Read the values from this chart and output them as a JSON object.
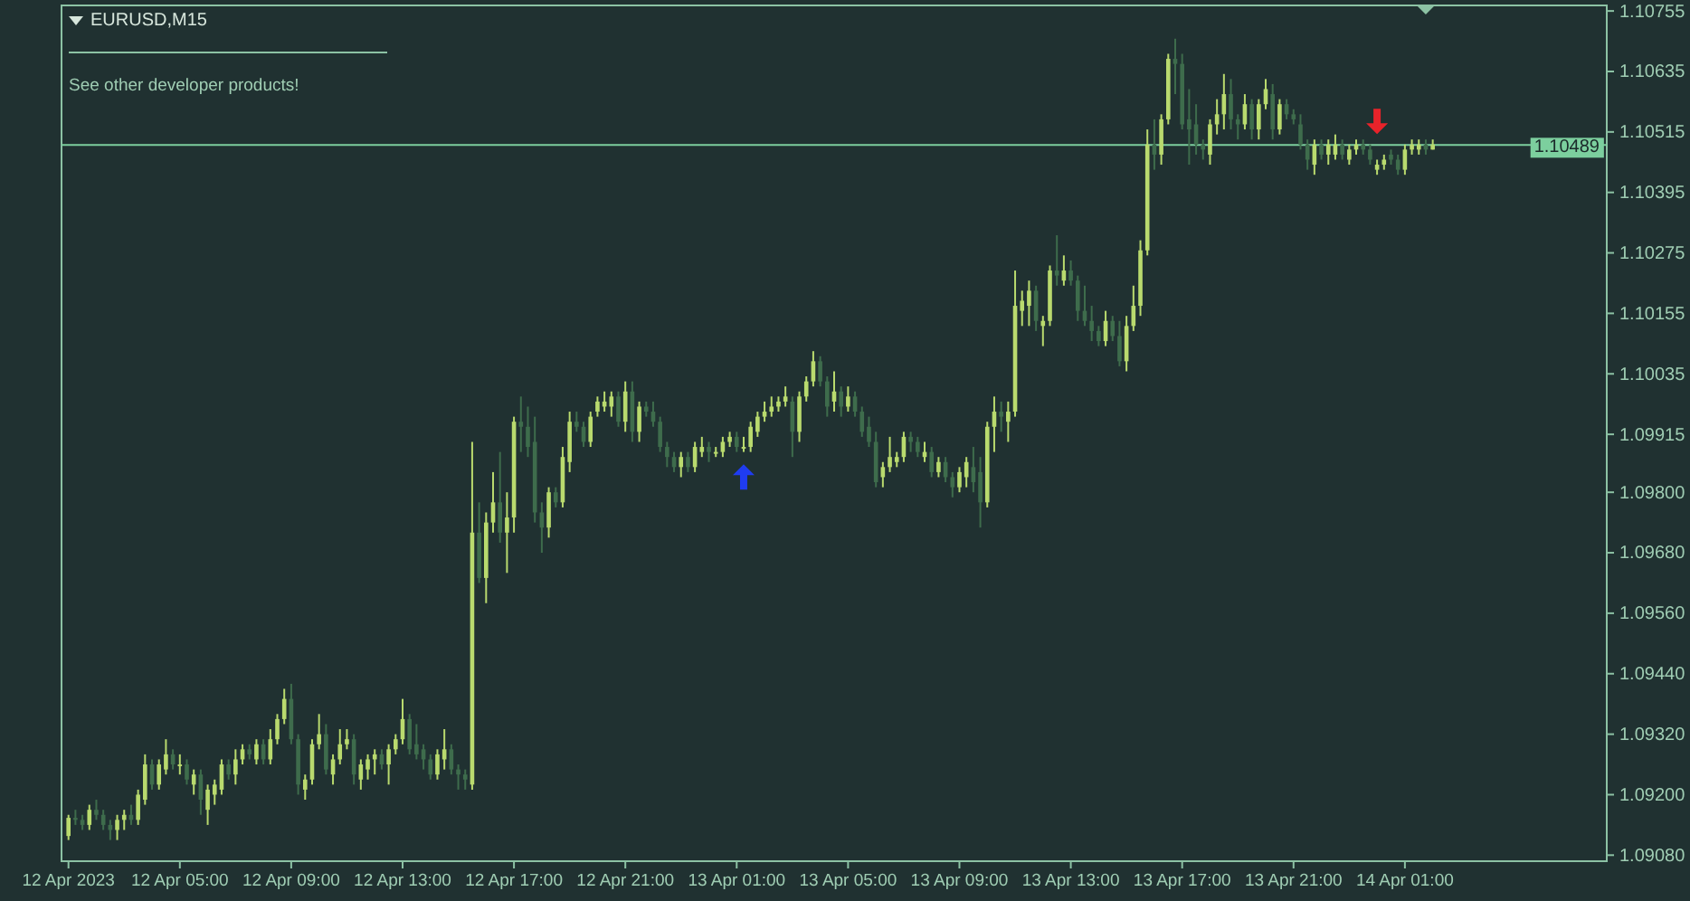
{
  "chart_data": {
    "type": "candlestick",
    "title": "EURUSD,M15",
    "annotations": [
      "See other developer products!"
    ],
    "x": [
      "2023-04-12T01:00",
      "2023-04-12T01:15",
      "2023-04-12T01:30",
      "2023-04-12T01:45",
      "2023-04-12T02:00",
      "2023-04-12T02:15",
      "2023-04-12T02:30",
      "2023-04-12T02:45",
      "2023-04-12T03:00",
      "2023-04-12T03:15",
      "2023-04-12T03:30",
      "2023-04-12T03:45",
      "2023-04-12T04:00",
      "2023-04-12T04:15",
      "2023-04-12T04:30",
      "2023-04-12T04:45",
      "2023-04-12T05:00",
      "2023-04-12T05:15",
      "2023-04-12T05:30",
      "2023-04-12T05:45",
      "2023-04-12T06:00",
      "2023-04-12T06:15",
      "2023-04-12T06:30",
      "2023-04-12T06:45",
      "2023-04-12T07:00",
      "2023-04-12T07:15",
      "2023-04-12T07:30",
      "2023-04-12T07:45",
      "2023-04-12T08:00",
      "2023-04-12T08:15",
      "2023-04-12T08:30",
      "2023-04-12T08:45",
      "2023-04-12T09:00",
      "2023-04-12T09:15",
      "2023-04-12T09:30",
      "2023-04-12T09:45",
      "2023-04-12T10:00",
      "2023-04-12T10:15",
      "2023-04-12T10:30",
      "2023-04-12T10:45",
      "2023-04-12T11:00",
      "2023-04-12T11:15",
      "2023-04-12T11:30",
      "2023-04-12T11:45",
      "2023-04-12T12:00",
      "2023-04-12T12:15",
      "2023-04-12T12:30",
      "2023-04-12T12:45",
      "2023-04-12T13:00",
      "2023-04-12T13:15",
      "2023-04-12T13:30",
      "2023-04-12T13:45",
      "2023-04-12T14:00",
      "2023-04-12T14:15",
      "2023-04-12T14:30",
      "2023-04-12T14:45",
      "2023-04-12T15:00",
      "2023-04-12T15:15",
      "2023-04-12T15:30",
      "2023-04-12T15:45",
      "2023-04-12T16:00",
      "2023-04-12T16:15",
      "2023-04-12T16:30",
      "2023-04-12T16:45",
      "2023-04-12T17:00",
      "2023-04-12T17:15",
      "2023-04-12T17:30",
      "2023-04-12T17:45",
      "2023-04-12T18:00",
      "2023-04-12T18:15",
      "2023-04-12T18:30",
      "2023-04-12T18:45",
      "2023-04-12T19:00",
      "2023-04-12T19:15",
      "2023-04-12T19:30",
      "2023-04-12T19:45",
      "2023-04-12T20:00",
      "2023-04-12T20:15",
      "2023-04-12T20:30",
      "2023-04-12T20:45",
      "2023-04-12T21:00",
      "2023-04-12T21:15",
      "2023-04-12T21:30",
      "2023-04-12T21:45",
      "2023-04-12T22:00",
      "2023-04-12T22:15",
      "2023-04-12T22:30",
      "2023-04-12T22:45",
      "2023-04-12T23:00",
      "2023-04-12T23:15",
      "2023-04-12T23:30",
      "2023-04-12T23:45",
      "2023-04-13T00:00",
      "2023-04-13T00:15",
      "2023-04-13T00:30",
      "2023-04-13T00:45",
      "2023-04-13T01:00",
      "2023-04-13T01:15",
      "2023-04-13T01:30",
      "2023-04-13T01:45",
      "2023-04-13T02:00",
      "2023-04-13T02:15",
      "2023-04-13T02:30",
      "2023-04-13T02:45",
      "2023-04-13T03:00",
      "2023-04-13T03:15",
      "2023-04-13T03:30",
      "2023-04-13T03:45",
      "2023-04-13T04:00",
      "2023-04-13T04:15",
      "2023-04-13T04:30",
      "2023-04-13T04:45",
      "2023-04-13T05:00",
      "2023-04-13T05:15",
      "2023-04-13T05:30",
      "2023-04-13T05:45",
      "2023-04-13T06:00",
      "2023-04-13T06:15",
      "2023-04-13T06:30",
      "2023-04-13T06:45",
      "2023-04-13T07:00",
      "2023-04-13T07:15",
      "2023-04-13T07:30",
      "2023-04-13T07:45",
      "2023-04-13T08:00",
      "2023-04-13T08:15",
      "2023-04-13T08:30",
      "2023-04-13T08:45",
      "2023-04-13T09:00",
      "2023-04-13T09:15",
      "2023-04-13T09:30",
      "2023-04-13T09:45",
      "2023-04-13T10:00",
      "2023-04-13T10:15",
      "2023-04-13T10:30",
      "2023-04-13T10:45",
      "2023-04-13T11:00",
      "2023-04-13T11:15",
      "2023-04-13T11:30",
      "2023-04-13T11:45",
      "2023-04-13T12:00",
      "2023-04-13T12:15",
      "2023-04-13T12:30",
      "2023-04-13T12:45",
      "2023-04-13T13:00",
      "2023-04-13T13:15",
      "2023-04-13T13:30",
      "2023-04-13T13:45",
      "2023-04-13T14:00",
      "2023-04-13T14:15",
      "2023-04-13T14:30",
      "2023-04-13T14:45",
      "2023-04-13T15:00",
      "2023-04-13T15:15",
      "2023-04-13T15:30",
      "2023-04-13T15:45",
      "2023-04-13T16:00",
      "2023-04-13T16:15",
      "2023-04-13T16:30",
      "2023-04-13T16:45",
      "2023-04-13T17:00",
      "2023-04-13T17:15",
      "2023-04-13T17:30",
      "2023-04-13T17:45",
      "2023-04-13T18:00",
      "2023-04-13T18:15",
      "2023-04-13T18:30",
      "2023-04-13T18:45",
      "2023-04-13T19:00",
      "2023-04-13T19:15",
      "2023-04-13T19:30",
      "2023-04-13T19:45",
      "2023-04-13T20:00",
      "2023-04-13T20:15",
      "2023-04-13T20:30",
      "2023-04-13T20:45",
      "2023-04-13T21:00",
      "2023-04-13T21:15",
      "2023-04-13T21:30",
      "2023-04-13T21:45",
      "2023-04-13T22:00",
      "2023-04-13T22:15",
      "2023-04-13T22:30",
      "2023-04-13T22:45",
      "2023-04-13T23:00",
      "2023-04-13T23:15",
      "2023-04-13T23:30",
      "2023-04-13T23:45",
      "2023-04-14T00:00",
      "2023-04-14T00:15",
      "2023-04-14T00:30",
      "2023-04-14T00:45",
      "2023-04-14T01:00",
      "2023-04-14T01:15",
      "2023-04-14T01:30",
      "2023-04-14T01:45",
      "2023-04-14T02:00"
    ],
    "ohlc": [
      [
        1.09118,
        1.0916,
        1.0911,
        1.09154
      ],
      [
        1.09154,
        1.0917,
        1.0914,
        1.0915
      ],
      [
        1.0915,
        1.0916,
        1.0913,
        1.0914
      ],
      [
        1.0914,
        1.0918,
        1.0913,
        1.0917
      ],
      [
        1.0917,
        1.0919,
        1.0915,
        1.0916
      ],
      [
        1.0916,
        1.0917,
        1.0913,
        1.0914
      ],
      [
        1.0914,
        1.0915,
        1.0911,
        1.0913
      ],
      [
        1.0913,
        1.0916,
        1.0911,
        1.0915
      ],
      [
        1.0915,
        1.0917,
        1.0913,
        1.0916
      ],
      [
        1.0916,
        1.0918,
        1.0914,
        1.0915
      ],
      [
        1.0915,
        1.0921,
        1.0914,
        1.092
      ],
      [
        1.0919,
        1.0928,
        1.0918,
        1.0926
      ],
      [
        1.0926,
        1.0927,
        1.0921,
        1.0922
      ],
      [
        1.0922,
        1.0927,
        1.0921,
        1.0926
      ],
      [
        1.0925,
        1.0931,
        1.0924,
        1.0928
      ],
      [
        1.0928,
        1.0929,
        1.0925,
        1.0926
      ],
      [
        1.0926,
        1.0928,
        1.0924,
        1.0926
      ],
      [
        1.0926,
        1.0927,
        1.0922,
        1.0923
      ],
      [
        1.0922,
        1.0925,
        1.092,
        1.0924
      ],
      [
        1.0924,
        1.0925,
        1.0916,
        1.0919
      ],
      [
        1.0917,
        1.0922,
        1.0914,
        1.0921
      ],
      [
        1.092,
        1.0923,
        1.0918,
        1.0922
      ],
      [
        1.0921,
        1.0927,
        1.092,
        1.0926
      ],
      [
        1.0926,
        1.0927,
        1.0923,
        1.0924
      ],
      [
        1.0924,
        1.0929,
        1.0922,
        1.0927
      ],
      [
        1.0927,
        1.093,
        1.0926,
        1.0929
      ],
      [
        1.0929,
        1.093,
        1.0927,
        1.0928
      ],
      [
        1.0927,
        1.0931,
        1.0926,
        1.093
      ],
      [
        1.093,
        1.0931,
        1.0926,
        1.0927
      ],
      [
        1.0927,
        1.0933,
        1.0926,
        1.0931
      ],
      [
        1.0931,
        1.0936,
        1.093,
        1.0935
      ],
      [
        1.0935,
        1.0941,
        1.0934,
        1.0939
      ],
      [
        1.0939,
        1.0942,
        1.093,
        1.0931
      ],
      [
        1.0931,
        1.0932,
        1.092,
        1.0922
      ],
      [
        1.0921,
        1.0924,
        1.0919,
        1.0923
      ],
      [
        1.0923,
        1.0931,
        1.0922,
        1.093
      ],
      [
        1.093,
        1.0936,
        1.0929,
        1.0932
      ],
      [
        1.0932,
        1.0934,
        1.0924,
        1.0925
      ],
      [
        1.0924,
        1.0928,
        1.0922,
        1.0927
      ],
      [
        1.0927,
        1.0933,
        1.0926,
        1.093
      ],
      [
        1.093,
        1.0933,
        1.0929,
        1.0931
      ],
      [
        1.0931,
        1.0932,
        1.0922,
        1.0924
      ],
      [
        1.0923,
        1.0927,
        1.0921,
        1.0926
      ],
      [
        1.0925,
        1.0928,
        1.0923,
        1.0927
      ],
      [
        1.0927,
        1.0929,
        1.0924,
        1.0928
      ],
      [
        1.0928,
        1.0929,
        1.0925,
        1.0926
      ],
      [
        1.0926,
        1.093,
        1.0922,
        1.0929
      ],
      [
        1.0929,
        1.0932,
        1.0928,
        1.0931
      ],
      [
        1.0931,
        1.0939,
        1.093,
        1.0935
      ],
      [
        1.0935,
        1.0936,
        1.0928,
        1.0929
      ],
      [
        1.093,
        1.0934,
        1.0927,
        1.0928
      ],
      [
        1.0929,
        1.093,
        1.0925,
        1.0927
      ],
      [
        1.0927,
        1.0928,
        1.0923,
        1.0924
      ],
      [
        1.0924,
        1.0929,
        1.0923,
        1.0928
      ],
      [
        1.0927,
        1.0933,
        1.0925,
        1.0929
      ],
      [
        1.0929,
        1.093,
        1.0924,
        1.0925
      ],
      [
        1.0925,
        1.0926,
        1.0921,
        1.0924
      ],
      [
        1.0924,
        1.0925,
        1.0921,
        1.0923
      ],
      [
        1.0922,
        1.099,
        1.0921,
        1.0972
      ],
      [
        1.0972,
        1.0978,
        1.0962,
        1.0963
      ],
      [
        1.0963,
        1.0976,
        1.0958,
        1.0974
      ],
      [
        1.0974,
        1.0984,
        1.0972,
        1.0978
      ],
      [
        1.0978,
        1.0988,
        1.097,
        1.0972
      ],
      [
        1.0972,
        1.098,
        1.0964,
        1.0975
      ],
      [
        1.0975,
        1.0995,
        1.0972,
        1.0994
      ],
      [
        1.0994,
        1.0999,
        1.0988,
        1.0993
      ],
      [
        1.0993,
        1.0997,
        1.0987,
        1.0989
      ],
      [
        1.099,
        1.0995,
        1.0974,
        1.0976
      ],
      [
        1.0976,
        1.0978,
        1.0968,
        1.0973
      ],
      [
        1.0973,
        1.0981,
        1.0971,
        1.098
      ],
      [
        1.098,
        1.0981,
        1.0977,
        1.0978
      ],
      [
        1.0978,
        1.0989,
        1.0977,
        1.0987
      ],
      [
        1.0986,
        1.0996,
        1.0984,
        1.0994
      ],
      [
        1.0994,
        1.0996,
        1.0992,
        1.0993
      ],
      [
        1.0993,
        1.0994,
        1.0989,
        1.099
      ],
      [
        1.099,
        1.0996,
        1.0989,
        1.0995
      ],
      [
        1.0996,
        1.0999,
        1.0995,
        1.0998
      ],
      [
        1.0997,
        1.1,
        1.0996,
        1.0998
      ],
      [
        1.0997,
        1.1,
        1.0995,
        1.0999
      ],
      [
        1.0999,
        1.1,
        1.0993,
        1.0994
      ],
      [
        1.0994,
        1.1002,
        1.0992,
        1.1
      ],
      [
        1.1,
        1.1002,
        1.099,
        1.0992
      ],
      [
        1.0992,
        1.0998,
        1.099,
        1.0997
      ],
      [
        1.0997,
        1.0998,
        1.0995,
        1.0996
      ],
      [
        1.0996,
        1.0998,
        1.0993,
        1.0994
      ],
      [
        1.0994,
        1.0995,
        1.0988,
        1.0989
      ],
      [
        1.0989,
        1.099,
        1.0985,
        1.0987
      ],
      [
        1.0987,
        1.0988,
        1.0984,
        1.0985
      ],
      [
        1.0985,
        1.0988,
        1.0983,
        1.0987
      ],
      [
        1.0987,
        1.0988,
        1.0984,
        1.0985
      ],
      [
        1.0985,
        1.099,
        1.0984,
        1.0989
      ],
      [
        1.0988,
        1.0991,
        1.0987,
        1.0989
      ],
      [
        1.0989,
        1.099,
        1.0986,
        1.0988
      ],
      [
        1.0988,
        1.0989,
        1.0987,
        1.0988
      ],
      [
        1.0988,
        1.0991,
        1.0987,
        1.099
      ],
      [
        1.099,
        1.0992,
        1.0989,
        1.0991
      ],
      [
        1.0991,
        1.0992,
        1.0988,
        1.0989
      ],
      [
        1.0989,
        1.0991,
        1.0988,
        1.0989
      ],
      [
        1.0989,
        1.0994,
        1.0988,
        1.0993
      ],
      [
        1.0992,
        1.0996,
        1.0991,
        1.0995
      ],
      [
        1.0995,
        1.0998,
        1.0994,
        1.0996
      ],
      [
        1.0996,
        1.0999,
        1.0995,
        1.0997
      ],
      [
        1.0997,
        1.0999,
        1.0996,
        1.0998
      ],
      [
        1.0998,
        1.1001,
        1.0997,
        1.0999
      ],
      [
        1.0998,
        1.0999,
        1.0987,
        1.0992
      ],
      [
        1.0992,
        1.1,
        1.099,
        1.0999
      ],
      [
        1.0999,
        1.1003,
        1.0998,
        1.1002
      ],
      [
        1.1002,
        1.1008,
        1.1001,
        1.1006
      ],
      [
        1.1006,
        1.1007,
        1.1001,
        1.1002
      ],
      [
        1.1002,
        1.1003,
        1.0995,
        1.0997
      ],
      [
        1.0998,
        1.1004,
        1.0996,
        1.1
      ],
      [
        1.1,
        1.1001,
        1.0995,
        1.0997
      ],
      [
        1.0997,
        1.1001,
        1.0996,
        1.0999
      ],
      [
        1.0999,
        1.1,
        1.0995,
        1.0996
      ],
      [
        1.0996,
        1.0997,
        1.0991,
        1.0992
      ],
      [
        1.0993,
        1.0995,
        1.0989,
        1.099
      ],
      [
        1.099,
        1.0992,
        1.0981,
        1.0982
      ],
      [
        1.0983,
        1.0986,
        1.0981,
        1.0985
      ],
      [
        1.0985,
        1.0991,
        1.0984,
        1.0987
      ],
      [
        1.0986,
        1.0988,
        1.0985,
        1.0987
      ],
      [
        1.0987,
        1.0992,
        1.0986,
        1.0991
      ],
      [
        1.0991,
        1.0992,
        1.0988,
        1.099
      ],
      [
        1.099,
        1.0991,
        1.0987,
        1.0988
      ],
      [
        1.0987,
        1.099,
        1.0986,
        1.0988
      ],
      [
        1.0988,
        1.0989,
        1.0983,
        1.0984
      ],
      [
        1.0984,
        1.0987,
        1.0983,
        1.0986
      ],
      [
        1.0986,
        1.0987,
        1.0982,
        1.0983
      ],
      [
        1.0983,
        1.0984,
        1.0979,
        1.0981
      ],
      [
        1.0981,
        1.0985,
        1.098,
        1.0984
      ],
      [
        1.0983,
        1.0987,
        1.0981,
        1.0986
      ],
      [
        1.0985,
        1.0989,
        1.098,
        1.0982
      ],
      [
        1.0984,
        1.0987,
        1.0973,
        1.0978
      ],
      [
        1.0978,
        1.0994,
        1.0977,
        1.0993
      ],
      [
        1.0993,
        1.0999,
        1.0988,
        1.0996
      ],
      [
        1.0996,
        1.0998,
        1.0992,
        1.0995
      ],
      [
        1.0994,
        1.0998,
        1.099,
        1.0996
      ],
      [
        1.0996,
        1.1024,
        1.0995,
        1.1017
      ],
      [
        1.1016,
        1.102,
        1.1013,
        1.1018
      ],
      [
        1.1017,
        1.1022,
        1.1013,
        1.102
      ],
      [
        1.102,
        1.1021,
        1.1012,
        1.1014
      ],
      [
        1.1013,
        1.1015,
        1.1009,
        1.1014
      ],
      [
        1.1014,
        1.1025,
        1.1013,
        1.1024
      ],
      [
        1.1024,
        1.1031,
        1.1021,
        1.1023
      ],
      [
        1.1022,
        1.1027,
        1.1021,
        1.1024
      ],
      [
        1.1024,
        1.1026,
        1.1021,
        1.1022
      ],
      [
        1.1022,
        1.1023,
        1.1014,
        1.1016
      ],
      [
        1.1016,
        1.1021,
        1.1013,
        1.1014
      ],
      [
        1.1014,
        1.1017,
        1.101,
        1.1012
      ],
      [
        1.1012,
        1.1013,
        1.1009,
        1.101
      ],
      [
        1.101,
        1.1016,
        1.1009,
        1.1014
      ],
      [
        1.1014,
        1.1015,
        1.101,
        1.1011
      ],
      [
        1.1011,
        1.1014,
        1.1005,
        1.1006
      ],
      [
        1.1006,
        1.1015,
        1.1004,
        1.1013
      ],
      [
        1.1013,
        1.1021,
        1.1012,
        1.1017
      ],
      [
        1.1017,
        1.103,
        1.1015,
        1.1028
      ],
      [
        1.1028,
        1.1052,
        1.1027,
        1.1049
      ],
      [
        1.1049,
        1.1054,
        1.1044,
        1.1047
      ],
      [
        1.1047,
        1.1055,
        1.1045,
        1.1054
      ],
      [
        1.1054,
        1.1067,
        1.1053,
        1.1066
      ],
      [
        1.1066,
        1.107,
        1.1059,
        1.1065
      ],
      [
        1.1065,
        1.1067,
        1.1052,
        1.1053
      ],
      [
        1.1054,
        1.106,
        1.1045,
        1.1052
      ],
      [
        1.1053,
        1.1057,
        1.1047,
        1.1049
      ],
      [
        1.1049,
        1.105,
        1.1046,
        1.1048
      ],
      [
        1.1047,
        1.1054,
        1.1045,
        1.1053
      ],
      [
        1.1053,
        1.1058,
        1.1051,
        1.1055
      ],
      [
        1.1055,
        1.1063,
        1.1052,
        1.1059
      ],
      [
        1.1059,
        1.1062,
        1.1052,
        1.1054
      ],
      [
        1.1054,
        1.1055,
        1.105,
        1.1053
      ],
      [
        1.1053,
        1.1059,
        1.1052,
        1.1057
      ],
      [
        1.1057,
        1.1058,
        1.105,
        1.1052
      ],
      [
        1.1052,
        1.1058,
        1.105,
        1.1057
      ],
      [
        1.1057,
        1.1062,
        1.1056,
        1.106
      ],
      [
        1.1059,
        1.1061,
        1.105,
        1.1052
      ],
      [
        1.1052,
        1.1058,
        1.1051,
        1.1057
      ],
      [
        1.1057,
        1.1058,
        1.1054,
        1.1055
      ],
      [
        1.1055,
        1.1056,
        1.1053,
        1.1054
      ],
      [
        1.1053,
        1.1055,
        1.1048,
        1.1049
      ],
      [
        1.1049,
        1.105,
        1.1044,
        1.1046
      ],
      [
        1.1045,
        1.105,
        1.1043,
        1.1049
      ],
      [
        1.1049,
        1.105,
        1.1046,
        1.1047
      ],
      [
        1.1047,
        1.105,
        1.1045,
        1.1049
      ],
      [
        1.1047,
        1.1051,
        1.1046,
        1.1049
      ],
      [
        1.1049,
        1.105,
        1.1046,
        1.1047
      ],
      [
        1.1046,
        1.1049,
        1.1045,
        1.1048
      ],
      [
        1.1048,
        1.105,
        1.1047,
        1.1049
      ],
      [
        1.1049,
        1.105,
        1.1047,
        1.1048
      ],
      [
        1.1048,
        1.1049,
        1.1045,
        1.1046
      ],
      [
        1.1044,
        1.1046,
        1.1043,
        1.1045
      ],
      [
        1.1045,
        1.1047,
        1.1044,
        1.1046
      ],
      [
        1.1047,
        1.1048,
        1.1045,
        1.1046
      ],
      [
        1.1046,
        1.1047,
        1.1043,
        1.1044
      ],
      [
        1.1044,
        1.1049,
        1.1043,
        1.1048
      ],
      [
        1.1048,
        1.105,
        1.1047,
        1.1049
      ],
      [
        1.1048,
        1.105,
        1.1047,
        1.1049
      ],
      [
        1.1049,
        1.105,
        1.1047,
        1.1048
      ],
      [
        1.1048,
        1.105,
        1.1048,
        1.1049
      ]
    ],
    "colors": [
      "#b9da6e",
      "#3e6c4c",
      "#3e6c4c",
      "#b9da6e",
      "#3e6c4c",
      "#3e6c4c",
      "#3e6c4c",
      "#b9da6e",
      "#b9da6e",
      "#3e6c4c",
      "#b9da6e",
      "#b9da6e",
      "#3e6c4c",
      "#b9da6e",
      "#b9da6e",
      "#3e6c4c",
      "#b9da6e",
      "#3e6c4c",
      "#b9da6e",
      "#3e6c4c",
      "#b9da6e",
      "#b9da6e",
      "#b9da6e",
      "#3e6c4c",
      "#b9da6e",
      "#b9da6e",
      "#3e6c4c",
      "#b9da6e",
      "#3e6c4c",
      "#b9da6e",
      "#b9da6e",
      "#b9da6e",
      "#3e6c4c",
      "#3e6c4c",
      "#b9da6e",
      "#b9da6e",
      "#b9da6e",
      "#3e6c4c",
      "#b9da6e",
      "#b9da6e",
      "#b9da6e",
      "#3e6c4c",
      "#b9da6e",
      "#b9da6e",
      "#b9da6e",
      "#3e6c4c",
      "#b9da6e",
      "#b9da6e",
      "#b9da6e",
      "#3e6c4c",
      "#3e6c4c",
      "#3e6c4c",
      "#3e6c4c",
      "#b9da6e",
      "#b9da6e",
      "#3e6c4c",
      "#3e6c4c",
      "#3e6c4c",
      "#b9da6e",
      "#3e6c4c",
      "#b9da6e",
      "#b9da6e",
      "#3e6c4c",
      "#b9da6e",
      "#b9da6e",
      "#3e6c4c",
      "#3e6c4c",
      "#3e6c4c",
      "#3e6c4c",
      "#b9da6e",
      "#3e6c4c",
      "#b9da6e",
      "#b9da6e",
      "#3e6c4c",
      "#3e6c4c",
      "#b9da6e",
      "#b9da6e",
      "#b9da6e",
      "#b9da6e",
      "#3e6c4c",
      "#b9da6e",
      "#3e6c4c",
      "#b9da6e",
      "#3e6c4c",
      "#3e6c4c",
      "#3e6c4c",
      "#3e6c4c",
      "#3e6c4c",
      "#b9da6e",
      "#3e6c4c",
      "#b9da6e",
      "#b9da6e",
      "#3e6c4c",
      "#b9da6e",
      "#b9da6e",
      "#b9da6e",
      "#3e6c4c",
      "#b9da6e",
      "#b9da6e",
      "#b9da6e",
      "#b9da6e",
      "#b9da6e",
      "#b9da6e",
      "#b9da6e",
      "#3e6c4c",
      "#b9da6e",
      "#b9da6e",
      "#b9da6e",
      "#3e6c4c",
      "#3e6c4c",
      "#b9da6e",
      "#3e6c4c",
      "#b9da6e",
      "#3e6c4c",
      "#3e6c4c",
      "#3e6c4c",
      "#3e6c4c",
      "#b9da6e",
      "#b9da6e",
      "#b9da6e",
      "#b9da6e",
      "#3e6c4c",
      "#3e6c4c",
      "#b9da6e",
      "#3e6c4c",
      "#b9da6e",
      "#3e6c4c",
      "#3e6c4c",
      "#b9da6e",
      "#b9da6e",
      "#3e6c4c",
      "#3e6c4c",
      "#b9da6e",
      "#b9da6e",
      "#3e6c4c",
      "#b9da6e",
      "#b9da6e",
      "#b9da6e",
      "#b9da6e",
      "#3e6c4c",
      "#b9da6e",
      "#b9da6e",
      "#3e6c4c",
      "#b9da6e",
      "#3e6c4c",
      "#3e6c4c",
      "#3e6c4c",
      "#3e6c4c",
      "#3e6c4c",
      "#b9da6e",
      "#3e6c4c",
      "#3e6c4c",
      "#b9da6e",
      "#b9da6e",
      "#b9da6e",
      "#b9da6e",
      "#3e6c4c",
      "#b9da6e",
      "#b9da6e",
      "#3e6c4c",
      "#3e6c4c",
      "#3e6c4c",
      "#3e6c4c",
      "#3e6c4c",
      "#b9da6e",
      "#b9da6e",
      "#b9da6e",
      "#3e6c4c",
      "#3e6c4c",
      "#b9da6e",
      "#3e6c4c",
      "#b9da6e",
      "#b9da6e",
      "#3e6c4c",
      "#b9da6e",
      "#3e6c4c",
      "#3e6c4c",
      "#3e6c4c",
      "#3e6c4c",
      "#b9da6e",
      "#3e6c4c",
      "#b9da6e",
      "#b9da6e",
      "#3e6c4c",
      "#b9da6e",
      "#b9da6e",
      "#3e6c4c",
      "#3e6c4c",
      "#b9da6e",
      "#b9da6e",
      "#3e6c4c",
      "#3e6c4c",
      "#b9da6e",
      "#b9da6e",
      "#b9da6e",
      "#3e6c4c",
      "#b9da6e"
    ],
    "xlim": [
      "2023-04-12T00:45",
      "2023-04-14T08:15"
    ],
    "xticks": [
      {
        "value": "2023-04-12T01:00",
        "label": "12 Apr 2023"
      },
      {
        "value": "2023-04-12T05:00",
        "label": "12 Apr 05:00"
      },
      {
        "value": "2023-04-12T09:00",
        "label": "12 Apr 09:00"
      },
      {
        "value": "2023-04-12T13:00",
        "label": "12 Apr 13:00"
      },
      {
        "value": "2023-04-12T17:00",
        "label": "12 Apr 17:00"
      },
      {
        "value": "2023-04-12T21:00",
        "label": "12 Apr 21:00"
      },
      {
        "value": "2023-04-13T01:00",
        "label": "13 Apr 01:00"
      },
      {
        "value": "2023-04-13T05:00",
        "label": "13 Apr 05:00"
      },
      {
        "value": "2023-04-13T09:00",
        "label": "13 Apr 09:00"
      },
      {
        "value": "2023-04-13T13:00",
        "label": "13 Apr 13:00"
      },
      {
        "value": "2023-04-13T17:00",
        "label": "13 Apr 17:00"
      },
      {
        "value": "2023-04-13T21:00",
        "label": "13 Apr 21:00"
      },
      {
        "value": "2023-04-14T01:00",
        "label": "14 Apr 01:00"
      }
    ],
    "ylim": [
      1.09068,
      1.10766
    ],
    "yticks": [
      1.10755,
      1.10635,
      1.10515,
      1.10395,
      1.10275,
      1.10155,
      1.10035,
      1.09915,
      {
        "value": 1.098,
        "label": "1.09800"
      },
      {
        "value": 1.0968,
        "label": "1.09680"
      },
      {
        "value": 1.0956,
        "label": "1.09560"
      },
      {
        "value": 1.0944,
        "label": "1.09440"
      },
      {
        "value": 1.0932,
        "label": "1.09320"
      },
      {
        "value": 1.092,
        "label": "1.09200"
      },
      {
        "value": 1.0908,
        "label": "1.09080"
      }
    ],
    "ref_lines": [
      {
        "axis": "y",
        "value": 1.10489,
        "label": "1.10489",
        "color": "#7ccf9e"
      }
    ]
  }
}
